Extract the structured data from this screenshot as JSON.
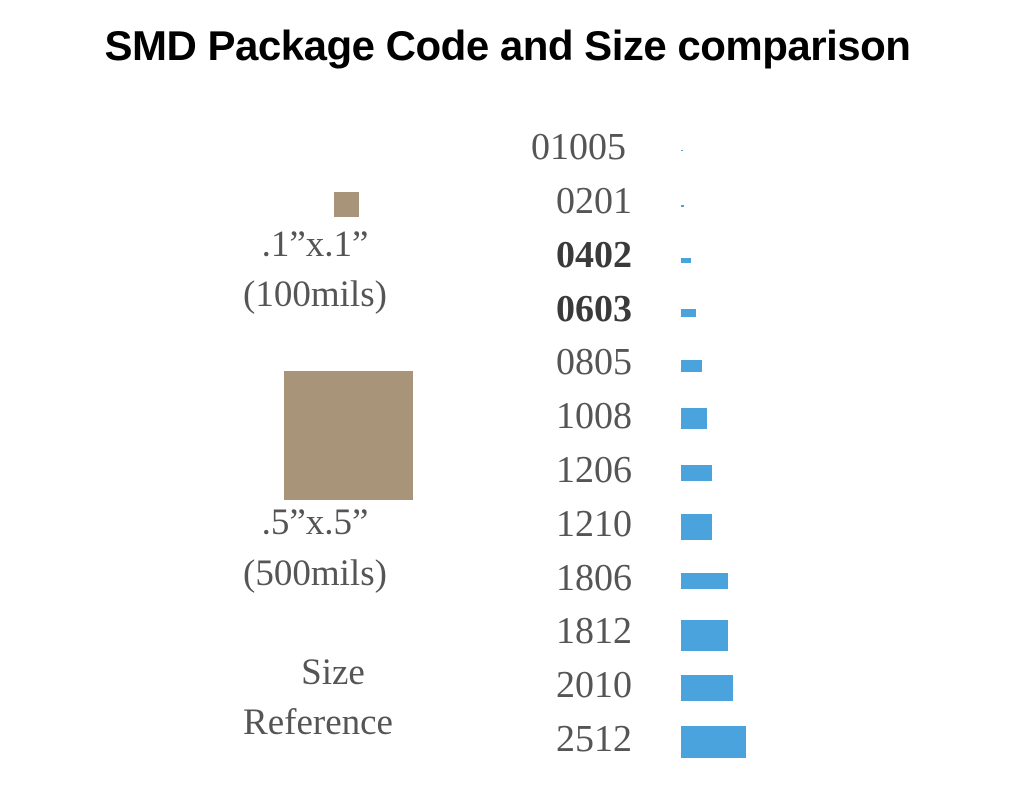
{
  "title": "SMD Package Code and Size comparison",
  "colors": {
    "reference_box": "#a89479",
    "package_bar": "#4aa3dc"
  },
  "size_reference": {
    "small": {
      "dimensions": ".1”x.1”",
      "mils": "(100mils)"
    },
    "large": {
      "dimensions": ".5”x.5”",
      "mils": "(500mils)"
    },
    "caption_line1": "Size",
    "caption_line2": "Reference"
  },
  "packages": [
    {
      "code": "01005",
      "bold": false
    },
    {
      "code": "0201",
      "bold": false
    },
    {
      "code": "0402",
      "bold": true
    },
    {
      "code": "0603",
      "bold": true
    },
    {
      "code": "0805",
      "bold": false
    },
    {
      "code": "1008",
      "bold": false
    },
    {
      "code": "1206",
      "bold": false
    },
    {
      "code": "1210",
      "bold": false
    },
    {
      "code": "1806",
      "bold": false
    },
    {
      "code": "1812",
      "bold": false
    },
    {
      "code": "2010",
      "bold": false
    },
    {
      "code": "2512",
      "bold": false
    }
  ]
}
